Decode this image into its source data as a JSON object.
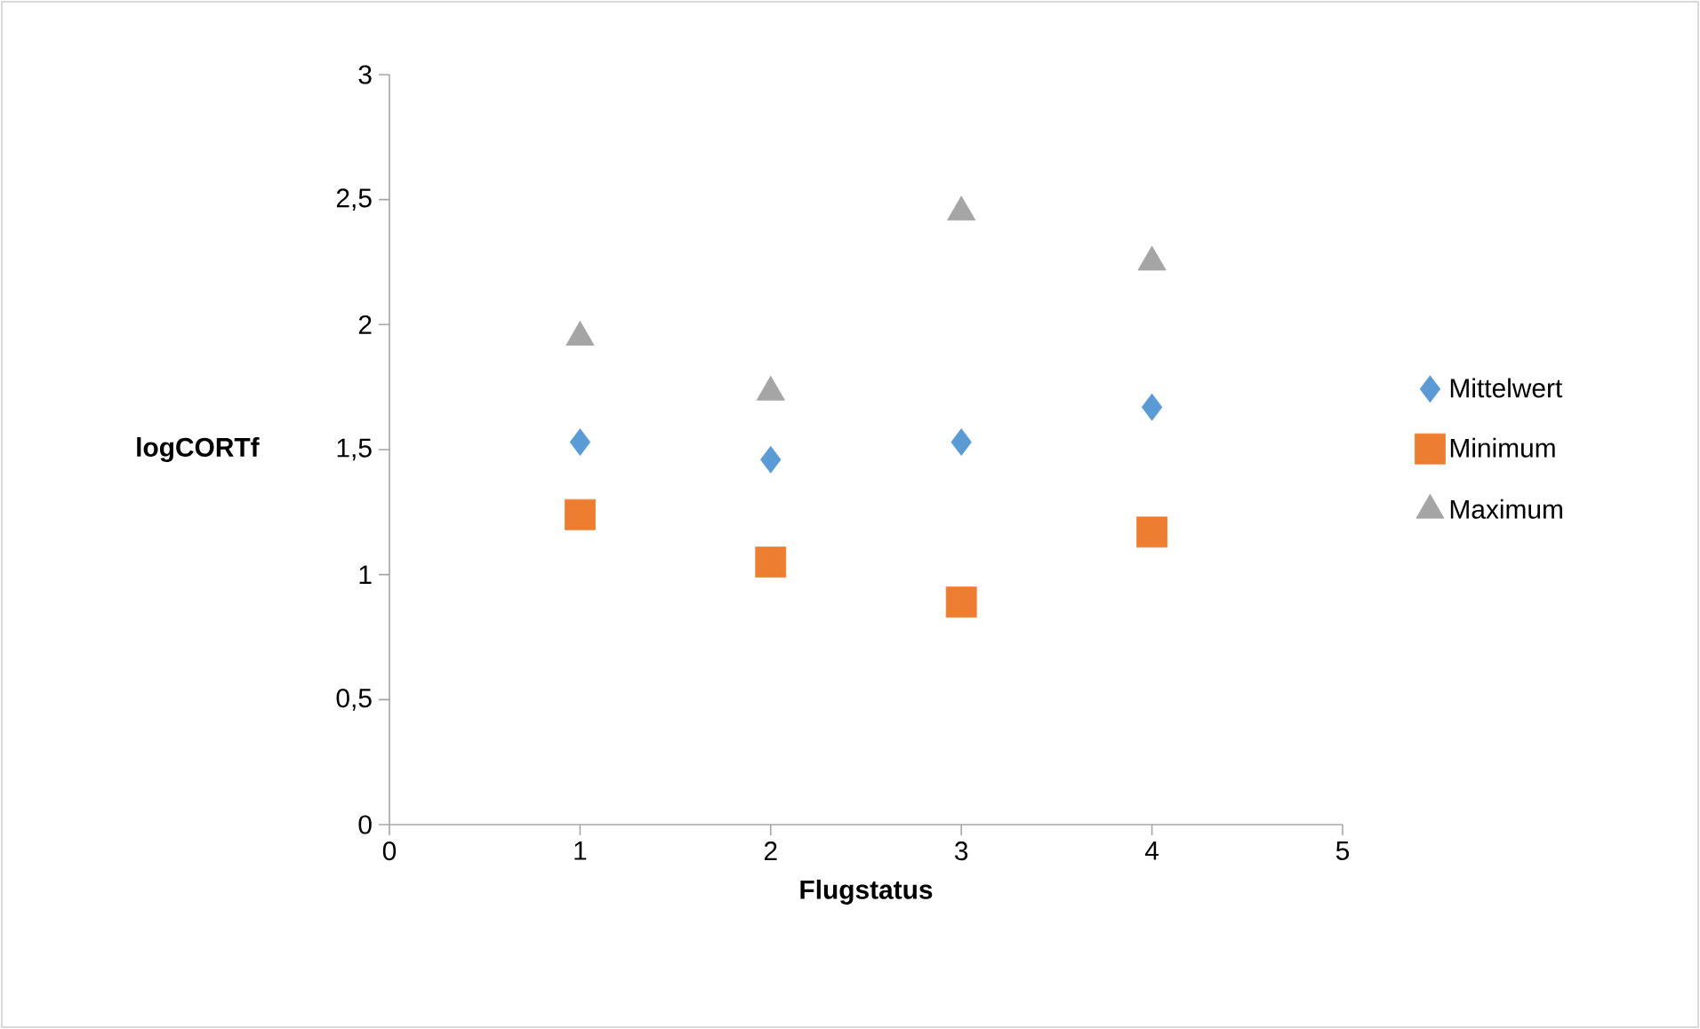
{
  "chart_data": {
    "type": "scatter",
    "xlabel": "Flugstatus",
    "ylabel": "logCORTf",
    "xlim": [
      0,
      5
    ],
    "xticks": [
      0,
      1,
      2,
      3,
      4,
      5
    ],
    "ylim": [
      0,
      3
    ],
    "yticks": [
      0,
      {
        "value": 0.5,
        "label": "0,5"
      },
      1,
      {
        "value": 1.5,
        "label": "1,5"
      },
      2,
      {
        "value": 2.5,
        "label": "2,5"
      },
      3
    ],
    "grid": false,
    "legend": "right",
    "series": [
      {
        "name": "Mittelwert",
        "color": "#5b9bd5",
        "marker": "diamond",
        "x": [
          1,
          2,
          3,
          4
        ],
        "values": [
          1.53,
          1.46,
          1.53,
          1.67
        ]
      },
      {
        "name": "Minimum",
        "color": "#ed7d31",
        "marker": "square",
        "x": [
          1,
          2,
          3,
          4
        ],
        "values": [
          1.24,
          1.05,
          0.89,
          1.17
        ]
      },
      {
        "name": "Maximum",
        "color": "#a5a5a5",
        "marker": "triangle",
        "x": [
          1,
          2,
          3,
          4
        ],
        "values": [
          1.95,
          1.73,
          2.45,
          2.25
        ]
      }
    ]
  }
}
